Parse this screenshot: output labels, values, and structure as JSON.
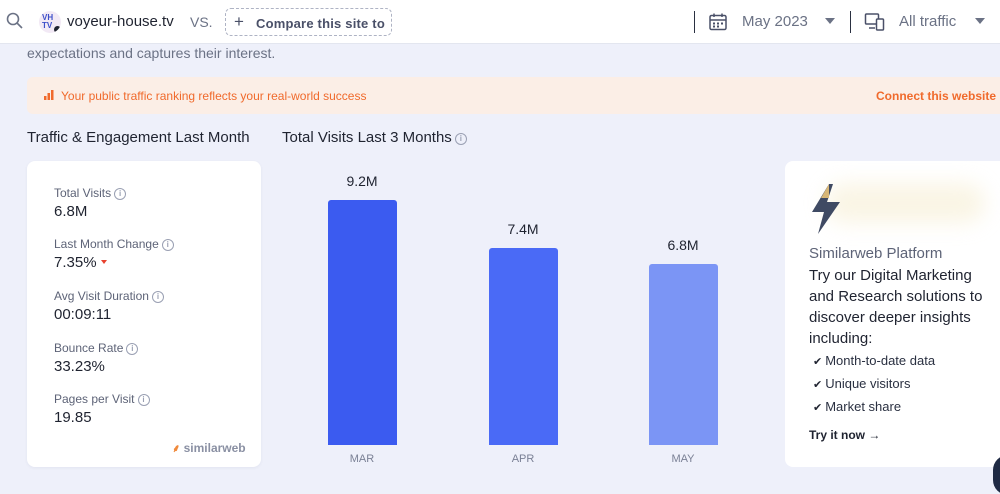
{
  "topbar": {
    "site_domain": "voyeur-house.tv",
    "site_logo_text": "VH TV",
    "vs_label": "VS.",
    "compare_label": "Compare this site to",
    "date_value": "May 2023",
    "traffic_value": "All traffic"
  },
  "intro": {
    "text": "expectations and captures their interest."
  },
  "banner": {
    "text": "Your public traffic ranking reflects your real-world success",
    "cta": "Connect this website"
  },
  "engagement": {
    "title": "Traffic & Engagement Last Month",
    "metrics": [
      {
        "label": "Total Visits",
        "value": "6.8M"
      },
      {
        "label": "Last Month Change",
        "value": "7.35%",
        "trend": "down"
      },
      {
        "label": "Avg Visit Duration",
        "value": "00:09:11"
      },
      {
        "label": "Bounce Rate",
        "value": "33.23%"
      },
      {
        "label": "Pages per Visit",
        "value": "19.85"
      }
    ],
    "brand": "similarweb"
  },
  "visits_chart": {
    "title": "Total Visits Last 3 Months"
  },
  "chart_data": {
    "type": "bar",
    "title": "Total Visits Last 3 Months",
    "categories": [
      "MAR",
      "APR",
      "MAY"
    ],
    "values": [
      9.2,
      7.4,
      6.8
    ],
    "value_labels": [
      "9.2M",
      "7.4M",
      "6.8M"
    ],
    "colors": [
      "#3b5bf0",
      "#4a6af6",
      "#7b95f5"
    ],
    "ylim": [
      0,
      10
    ],
    "grid": false
  },
  "promo": {
    "brand": "Similarweb Platform",
    "body": "Try our Digital Marketing and Research solutions to discover deeper insights including:",
    "items": [
      "Month-to-date data",
      "Unique visitors",
      "Market share"
    ],
    "cta": "Try it now →"
  }
}
